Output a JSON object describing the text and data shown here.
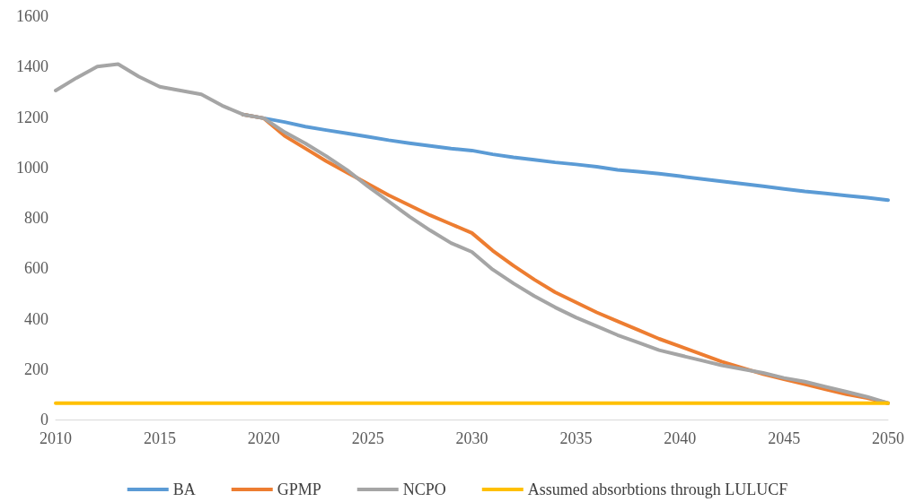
{
  "chart_data": {
    "type": "line",
    "x": [
      2010,
      2011,
      2012,
      2013,
      2014,
      2015,
      2016,
      2017,
      2018,
      2019,
      2020,
      2021,
      2022,
      2023,
      2024,
      2025,
      2026,
      2027,
      2028,
      2029,
      2030,
      2031,
      2032,
      2033,
      2034,
      2035,
      2036,
      2037,
      2038,
      2039,
      2040,
      2041,
      2042,
      2043,
      2044,
      2045,
      2046,
      2047,
      2048,
      2049,
      2050
    ],
    "series": [
      {
        "name": "BA",
        "color": "#5b9bd5",
        "values": [
          null,
          null,
          null,
          null,
          null,
          null,
          null,
          null,
          null,
          1210,
          1195,
          1180,
          1162,
          1148,
          1135,
          1122,
          1108,
          1096,
          1085,
          1075,
          1067,
          1052,
          1040,
          1030,
          1020,
          1012,
          1003,
          990,
          983,
          975,
          965,
          955,
          945,
          935,
          925,
          915,
          905,
          897,
          888,
          880,
          870
        ]
      },
      {
        "name": "GPMP",
        "color": "#ed7d31",
        "values": [
          null,
          null,
          null,
          null,
          null,
          null,
          null,
          null,
          null,
          1210,
          1195,
          1125,
          1075,
          1025,
          980,
          935,
          890,
          850,
          810,
          775,
          740,
          670,
          610,
          555,
          505,
          465,
          425,
          390,
          355,
          320,
          290,
          260,
          230,
          205,
          180,
          160,
          140,
          120,
          100,
          85,
          65
        ]
      },
      {
        "name": "NCPO",
        "color": "#a5a5a5",
        "values": [
          1305,
          1355,
          1400,
          1410,
          1360,
          1320,
          1305,
          1290,
          1245,
          1210,
          1195,
          1140,
          1095,
          1045,
          990,
          925,
          865,
          805,
          750,
          700,
          665,
          595,
          540,
          490,
          445,
          405,
          370,
          335,
          305,
          275,
          255,
          235,
          215,
          200,
          185,
          165,
          150,
          130,
          110,
          90,
          65
        ]
      },
      {
        "name": "Assumed absorbtions through LULUCF",
        "color": "#ffc000",
        "values": [
          65,
          65,
          65,
          65,
          65,
          65,
          65,
          65,
          65,
          65,
          65,
          65,
          65,
          65,
          65,
          65,
          65,
          65,
          65,
          65,
          65,
          65,
          65,
          65,
          65,
          65,
          65,
          65,
          65,
          65,
          65,
          65,
          65,
          65,
          65,
          65,
          65,
          65,
          65,
          65,
          65
        ]
      }
    ],
    "xlim": [
      2010,
      2050
    ],
    "xticks": [
      2010,
      2015,
      2020,
      2025,
      2030,
      2035,
      2040,
      2045,
      2050
    ],
    "ylim": [
      0,
      1600
    ],
    "yticks": [
      0,
      200,
      400,
      600,
      800,
      1000,
      1200,
      1400,
      1600
    ],
    "grid": false,
    "legend": "bottom",
    "marker": "none",
    "line_style": "solid"
  }
}
